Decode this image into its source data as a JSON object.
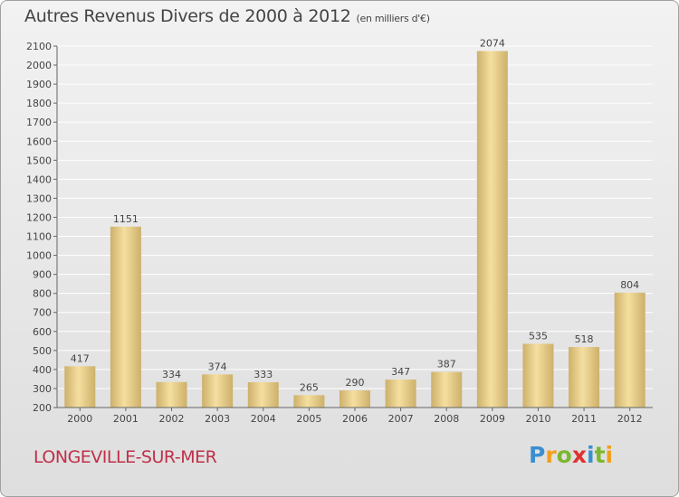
{
  "title": "Autres Revenus Divers de 2000 à 2012",
  "unit_note": "(en milliers d'€)",
  "location": "LONGEVILLE-SUR-MER",
  "logo": {
    "letters": [
      "P",
      "r",
      "o",
      "x",
      "i",
      "t",
      "i"
    ],
    "colors": [
      "#3a8fd0",
      "#f0a020",
      "#7cb82f",
      "#e03030",
      "#3a8fd0",
      "#7cb82f",
      "#f0a020"
    ]
  },
  "colors": {
    "bar_light": "#f5dfa0",
    "bar_dark": "#cdb06a",
    "grid": "#ffffff",
    "text": "#444444"
  },
  "chart_data": {
    "type": "bar",
    "categories": [
      "2000",
      "2001",
      "2002",
      "2003",
      "2004",
      "2005",
      "2006",
      "2007",
      "2008",
      "2009",
      "2010",
      "2011",
      "2012"
    ],
    "values": [
      417,
      1151,
      334,
      374,
      333,
      265,
      290,
      347,
      387,
      2074,
      535,
      518,
      804
    ],
    "ylim": [
      200,
      2100
    ],
    "yticks": [
      200,
      300,
      400,
      500,
      600,
      700,
      800,
      900,
      1000,
      1100,
      1200,
      1300,
      1400,
      1500,
      1600,
      1700,
      1800,
      1900,
      2000,
      2100
    ],
    "grid": true,
    "xlabel": "",
    "ylabel": ""
  }
}
